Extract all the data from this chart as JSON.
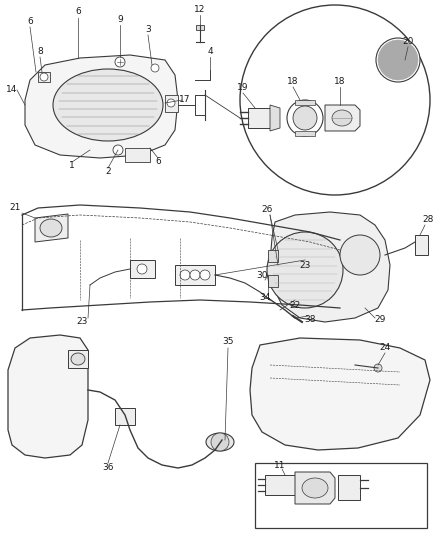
{
  "bg_color": "#ffffff",
  "lc": "#3a3a3a",
  "tc": "#1a1a1a",
  "fs": 6.5,
  "lw": 0.7,
  "fig_w": 4.38,
  "fig_h": 5.33,
  "dpi": 100
}
